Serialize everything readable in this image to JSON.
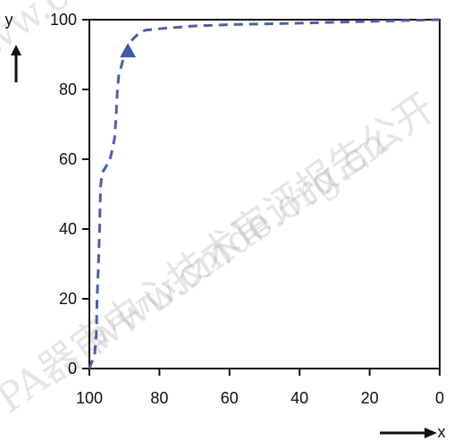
{
  "watermarks": [
    "PA器审中心技术审评报告公开",
    "www.cmde.org.cn",
    "www.cmde.org.cn"
  ],
  "chart_data": {
    "type": "line",
    "xlabel": "x",
    "ylabel": "y",
    "xlim": [
      100,
      0
    ],
    "ylim": [
      0,
      100
    ],
    "x_ticks": [
      100,
      80,
      60,
      40,
      20,
      0
    ],
    "y_ticks": [
      0,
      20,
      40,
      60,
      80,
      100
    ],
    "x_tick_labels": [
      "100",
      "80",
      "60",
      "40",
      "20",
      "0"
    ],
    "y_tick_labels": [
      "0",
      "20",
      "40",
      "60",
      "80",
      "100"
    ],
    "grid": false,
    "series": [
      {
        "color": "#4a5fa8",
        "line_style": "dashed",
        "points": [
          {
            "x": 100,
            "y": 0
          },
          {
            "x": 98.5,
            "y": 4
          },
          {
            "x": 98,
            "y": 10
          },
          {
            "x": 97.8,
            "y": 20
          },
          {
            "x": 97.4,
            "y": 30
          },
          {
            "x": 97.1,
            "y": 40
          },
          {
            "x": 96.8,
            "y": 52
          },
          {
            "x": 96.4,
            "y": 56
          },
          {
            "x": 95.2,
            "y": 58
          },
          {
            "x": 94.1,
            "y": 60
          },
          {
            "x": 93.4,
            "y": 63
          },
          {
            "x": 92.8,
            "y": 66
          },
          {
            "x": 92.4,
            "y": 72
          },
          {
            "x": 92,
            "y": 80
          },
          {
            "x": 91.6,
            "y": 84
          },
          {
            "x": 90.8,
            "y": 87
          },
          {
            "x": 89.8,
            "y": 91
          },
          {
            "x": 88,
            "y": 94
          },
          {
            "x": 86,
            "y": 96
          },
          {
            "x": 84,
            "y": 97
          },
          {
            "x": 80,
            "y": 97.4
          },
          {
            "x": 70,
            "y": 98.2
          },
          {
            "x": 60,
            "y": 98.6
          },
          {
            "x": 40,
            "y": 99
          },
          {
            "x": 20,
            "y": 99.5
          },
          {
            "x": 0,
            "y": 100
          }
        ]
      }
    ],
    "marker": {
      "x": 89,
      "y": 91,
      "shape": "triangle",
      "color": "#3f58b0"
    }
  }
}
